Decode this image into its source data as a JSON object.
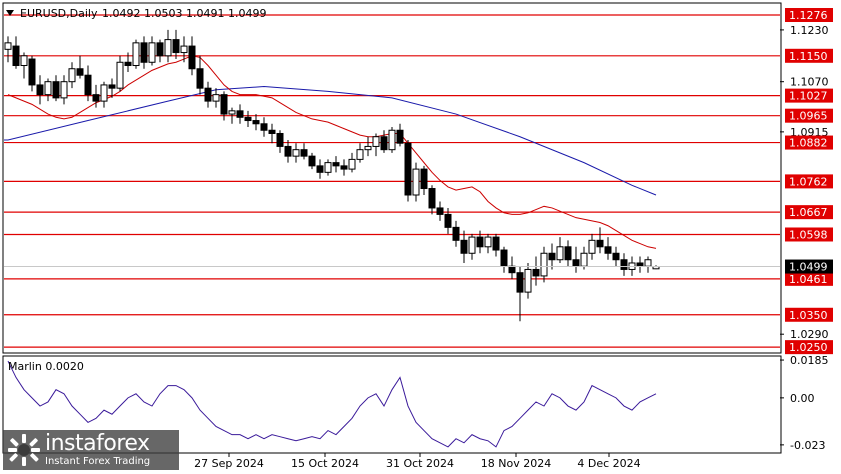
{
  "header": {
    "symbol": "EURUSD,Daily",
    "ohlc": "1.0492 1.0503 1.0491 1.0499"
  },
  "indicator": {
    "label": "Marlin 0.0020",
    "ticks": [
      "0.0185",
      "0.00",
      "-0.023"
    ]
  },
  "watermark": {
    "brand": "instaforex",
    "tagline": "Instant Forex Trading"
  },
  "colors": {
    "level": "#e00000",
    "fast_ma": "#cc0000",
    "slow_ma": "#1a1aaa",
    "oscillator": "#3a1a9a",
    "candle": "#000000",
    "current_tag": "#000000",
    "bg": "#ffffff"
  },
  "chart_data": {
    "type": "candlestick",
    "x_tick_labels": [
      "27 Sep 2024",
      "15 Oct 2024",
      "31 Oct 2024",
      "18 Nov 2024",
      "4 Dec 2024"
    ],
    "price_ticks": [
      "1.1230",
      "1.1070",
      "1.0915",
      "1.0290"
    ],
    "levels": [
      {
        "price": 1.1276,
        "label": "1.1276"
      },
      {
        "price": 1.115,
        "label": "1.1150"
      },
      {
        "price": 1.1027,
        "label": "1.1027"
      },
      {
        "price": 1.0965,
        "label": "1.0965"
      },
      {
        "price": 1.0882,
        "label": "1.0882"
      },
      {
        "price": 1.0762,
        "label": "1.0762"
      },
      {
        "price": 1.0667,
        "label": "1.0667"
      },
      {
        "price": 1.0598,
        "label": "1.0598"
      },
      {
        "price": 1.0461,
        "label": "1.0461"
      },
      {
        "price": 1.035,
        "label": "1.0350"
      },
      {
        "price": 1.025,
        "label": "1.0250"
      }
    ],
    "current_price": {
      "price": 1.0499,
      "label": "1.0499"
    },
    "y_range": [
      1.0235,
      1.131
    ],
    "candles": [
      [
        1.117,
        1.121,
        1.113,
        1.119
      ],
      [
        1.118,
        1.121,
        1.111,
        1.112
      ],
      [
        1.112,
        1.116,
        1.108,
        1.115
      ],
      [
        1.114,
        1.115,
        1.104,
        1.106
      ],
      [
        1.106,
        1.109,
        1.1,
        1.103
      ],
      [
        1.103,
        1.108,
        1.101,
        1.107
      ],
      [
        1.107,
        1.109,
        1.101,
        1.102
      ],
      [
        1.102,
        1.109,
        1.1,
        1.107
      ],
      [
        1.107,
        1.113,
        1.105,
        1.111
      ],
      [
        1.111,
        1.115,
        1.108,
        1.109
      ],
      [
        1.109,
        1.112,
        1.101,
        1.103
      ],
      [
        1.103,
        1.106,
        1.099,
        1.101
      ],
      [
        1.101,
        1.107,
        1.099,
        1.106
      ],
      [
        1.106,
        1.108,
        1.102,
        1.105
      ],
      [
        1.105,
        1.115,
        1.104,
        1.113
      ],
      [
        1.113,
        1.116,
        1.11,
        1.112
      ],
      [
        1.112,
        1.12,
        1.111,
        1.119
      ],
      [
        1.119,
        1.121,
        1.111,
        1.113
      ],
      [
        1.113,
        1.121,
        1.112,
        1.119
      ],
      [
        1.119,
        1.12,
        1.113,
        1.115
      ],
      [
        1.115,
        1.123,
        1.113,
        1.12
      ],
      [
        1.12,
        1.123,
        1.114,
        1.116
      ],
      [
        1.116,
        1.121,
        1.113,
        1.118
      ],
      [
        1.118,
        1.121,
        1.109,
        1.111
      ],
      [
        1.111,
        1.115,
        1.103,
        1.105
      ],
      [
        1.105,
        1.107,
        1.099,
        1.101
      ],
      [
        1.101,
        1.105,
        1.099,
        1.103
      ],
      [
        1.103,
        1.104,
        1.095,
        1.097
      ],
      [
        1.097,
        1.099,
        1.094,
        1.098
      ],
      [
        1.098,
        1.1,
        1.094,
        1.096
      ],
      [
        1.096,
        1.098,
        1.093,
        1.095
      ],
      [
        1.095,
        1.097,
        1.092,
        1.094
      ],
      [
        1.094,
        1.096,
        1.09,
        1.092
      ],
      [
        1.092,
        1.094,
        1.088,
        1.091
      ],
      [
        1.091,
        1.092,
        1.085,
        1.087
      ],
      [
        1.087,
        1.089,
        1.082,
        1.084
      ],
      [
        1.084,
        1.088,
        1.082,
        1.086
      ],
      [
        1.086,
        1.088,
        1.083,
        1.084
      ],
      [
        1.084,
        1.085,
        1.08,
        1.081
      ],
      [
        1.081,
        1.083,
        1.077,
        1.079
      ],
      [
        1.079,
        1.083,
        1.078,
        1.082
      ],
      [
        1.082,
        1.084,
        1.079,
        1.081
      ],
      [
        1.081,
        1.083,
        1.078,
        1.08
      ],
      [
        1.08,
        1.085,
        1.079,
        1.083
      ],
      [
        1.083,
        1.088,
        1.082,
        1.086
      ],
      [
        1.086,
        1.09,
        1.084,
        1.087
      ],
      [
        1.087,
        1.091,
        1.084,
        1.09
      ],
      [
        1.09,
        1.092,
        1.085,
        1.086
      ],
      [
        1.086,
        1.093,
        1.085,
        1.092
      ],
      [
        1.092,
        1.094,
        1.087,
        1.088
      ],
      [
        1.088,
        1.089,
        1.07,
        1.072
      ],
      [
        1.072,
        1.082,
        1.07,
        1.08
      ],
      [
        1.08,
        1.081,
        1.072,
        1.074
      ],
      [
        1.074,
        1.075,
        1.066,
        1.068
      ],
      [
        1.068,
        1.07,
        1.064,
        1.066
      ],
      [
        1.066,
        1.068,
        1.06,
        1.062
      ],
      [
        1.062,
        1.064,
        1.056,
        1.058
      ],
      [
        1.058,
        1.061,
        1.051,
        1.054
      ],
      [
        1.054,
        1.06,
        1.052,
        1.059
      ],
      [
        1.059,
        1.061,
        1.054,
        1.056
      ],
      [
        1.056,
        1.06,
        1.054,
        1.059
      ],
      [
        1.059,
        1.06,
        1.053,
        1.055
      ],
      [
        1.055,
        1.056,
        1.048,
        1.05
      ],
      [
        1.05,
        1.053,
        1.046,
        1.048
      ],
      [
        1.048,
        1.05,
        1.033,
        1.042
      ],
      [
        1.042,
        1.051,
        1.04,
        1.049
      ],
      [
        1.049,
        1.053,
        1.044,
        1.047
      ],
      [
        1.047,
        1.056,
        1.045,
        1.054
      ],
      [
        1.054,
        1.057,
        1.049,
        1.052
      ],
      [
        1.052,
        1.059,
        1.051,
        1.056
      ],
      [
        1.056,
        1.058,
        1.05,
        1.052
      ],
      [
        1.052,
        1.056,
        1.048,
        1.05
      ],
      [
        1.05,
        1.056,
        1.049,
        1.054
      ],
      [
        1.054,
        1.06,
        1.052,
        1.058
      ],
      [
        1.058,
        1.062,
        1.054,
        1.056
      ],
      [
        1.056,
        1.059,
        1.052,
        1.054
      ],
      [
        1.054,
        1.056,
        1.05,
        1.052
      ],
      [
        1.052,
        1.054,
        1.047,
        1.049
      ],
      [
        1.049,
        1.053,
        1.047,
        1.051
      ],
      [
        1.051,
        1.053,
        1.048,
        1.05
      ],
      [
        1.05,
        1.053,
        1.048,
        1.052
      ],
      [
        1.0492,
        1.0503,
        1.0491,
        1.0499
      ]
    ],
    "fast_ma": [
      1.103,
      1.102,
      1.101,
      1.1,
      1.0985,
      1.097,
      1.096,
      1.0955,
      1.096,
      1.0975,
      1.099,
      1.1005,
      1.1015,
      1.1025,
      1.104,
      1.106,
      1.1075,
      1.109,
      1.1105,
      1.1115,
      1.1125,
      1.113,
      1.114,
      1.115,
      1.1145,
      1.112,
      1.109,
      1.106,
      1.104,
      1.103,
      1.103,
      1.103,
      1.1025,
      1.102,
      1.1005,
      1.099,
      1.0975,
      1.0965,
      1.0955,
      1.095,
      1.0945,
      1.0935,
      1.0925,
      1.0915,
      1.0905,
      1.09,
      1.09,
      1.0905,
      1.091,
      1.091,
      1.088,
      1.085,
      1.082,
      1.079,
      1.0765,
      1.0745,
      1.0735,
      1.074,
      1.0745,
      1.073,
      1.07,
      1.068,
      1.0665,
      1.066,
      1.066,
      1.0665,
      1.0675,
      1.0685,
      1.068,
      1.067,
      1.066,
      1.065,
      1.0645,
      1.064,
      1.0635,
      1.0625,
      1.061,
      1.0595,
      1.058,
      1.057,
      1.056,
      1.0555
    ],
    "slow_ma_points": [
      [
        0,
        1.089
      ],
      [
        10,
        1.095
      ],
      [
        20,
        1.101
      ],
      [
        26,
        1.1045
      ],
      [
        32,
        1.1055
      ],
      [
        40,
        1.104
      ],
      [
        48,
        1.102
      ],
      [
        56,
        1.097
      ],
      [
        64,
        1.09
      ],
      [
        72,
        1.082
      ],
      [
        78,
        1.075
      ],
      [
        81,
        1.072
      ]
    ],
    "oscillator": {
      "y_range": [
        -0.026,
        0.0195
      ],
      "values": [
        0.018,
        0.01,
        0.004,
        0.0,
        -0.004,
        -0.002,
        0.004,
        0.002,
        -0.004,
        -0.008,
        -0.012,
        -0.01,
        -0.006,
        -0.008,
        -0.004,
        0.0,
        0.002,
        -0.002,
        -0.004,
        0.002,
        0.006,
        0.006,
        0.004,
        0.0,
        -0.006,
        -0.01,
        -0.014,
        -0.016,
        -0.018,
        -0.018,
        -0.02,
        -0.018,
        -0.02,
        -0.018,
        -0.019,
        -0.02,
        -0.021,
        -0.02,
        -0.019,
        -0.02,
        -0.016,
        -0.018,
        -0.014,
        -0.01,
        -0.004,
        0.0,
        0.002,
        -0.004,
        0.004,
        0.01,
        -0.004,
        -0.012,
        -0.016,
        -0.02,
        -0.022,
        -0.024,
        -0.02,
        -0.022,
        -0.018,
        -0.02,
        -0.021,
        -0.024,
        -0.016,
        -0.014,
        -0.01,
        -0.006,
        -0.002,
        -0.004,
        0.002,
        0.0,
        -0.004,
        -0.006,
        -0.002,
        0.006,
        0.004,
        0.002,
        0.0,
        -0.004,
        -0.006,
        -0.002,
        0.0,
        0.002
      ]
    }
  }
}
